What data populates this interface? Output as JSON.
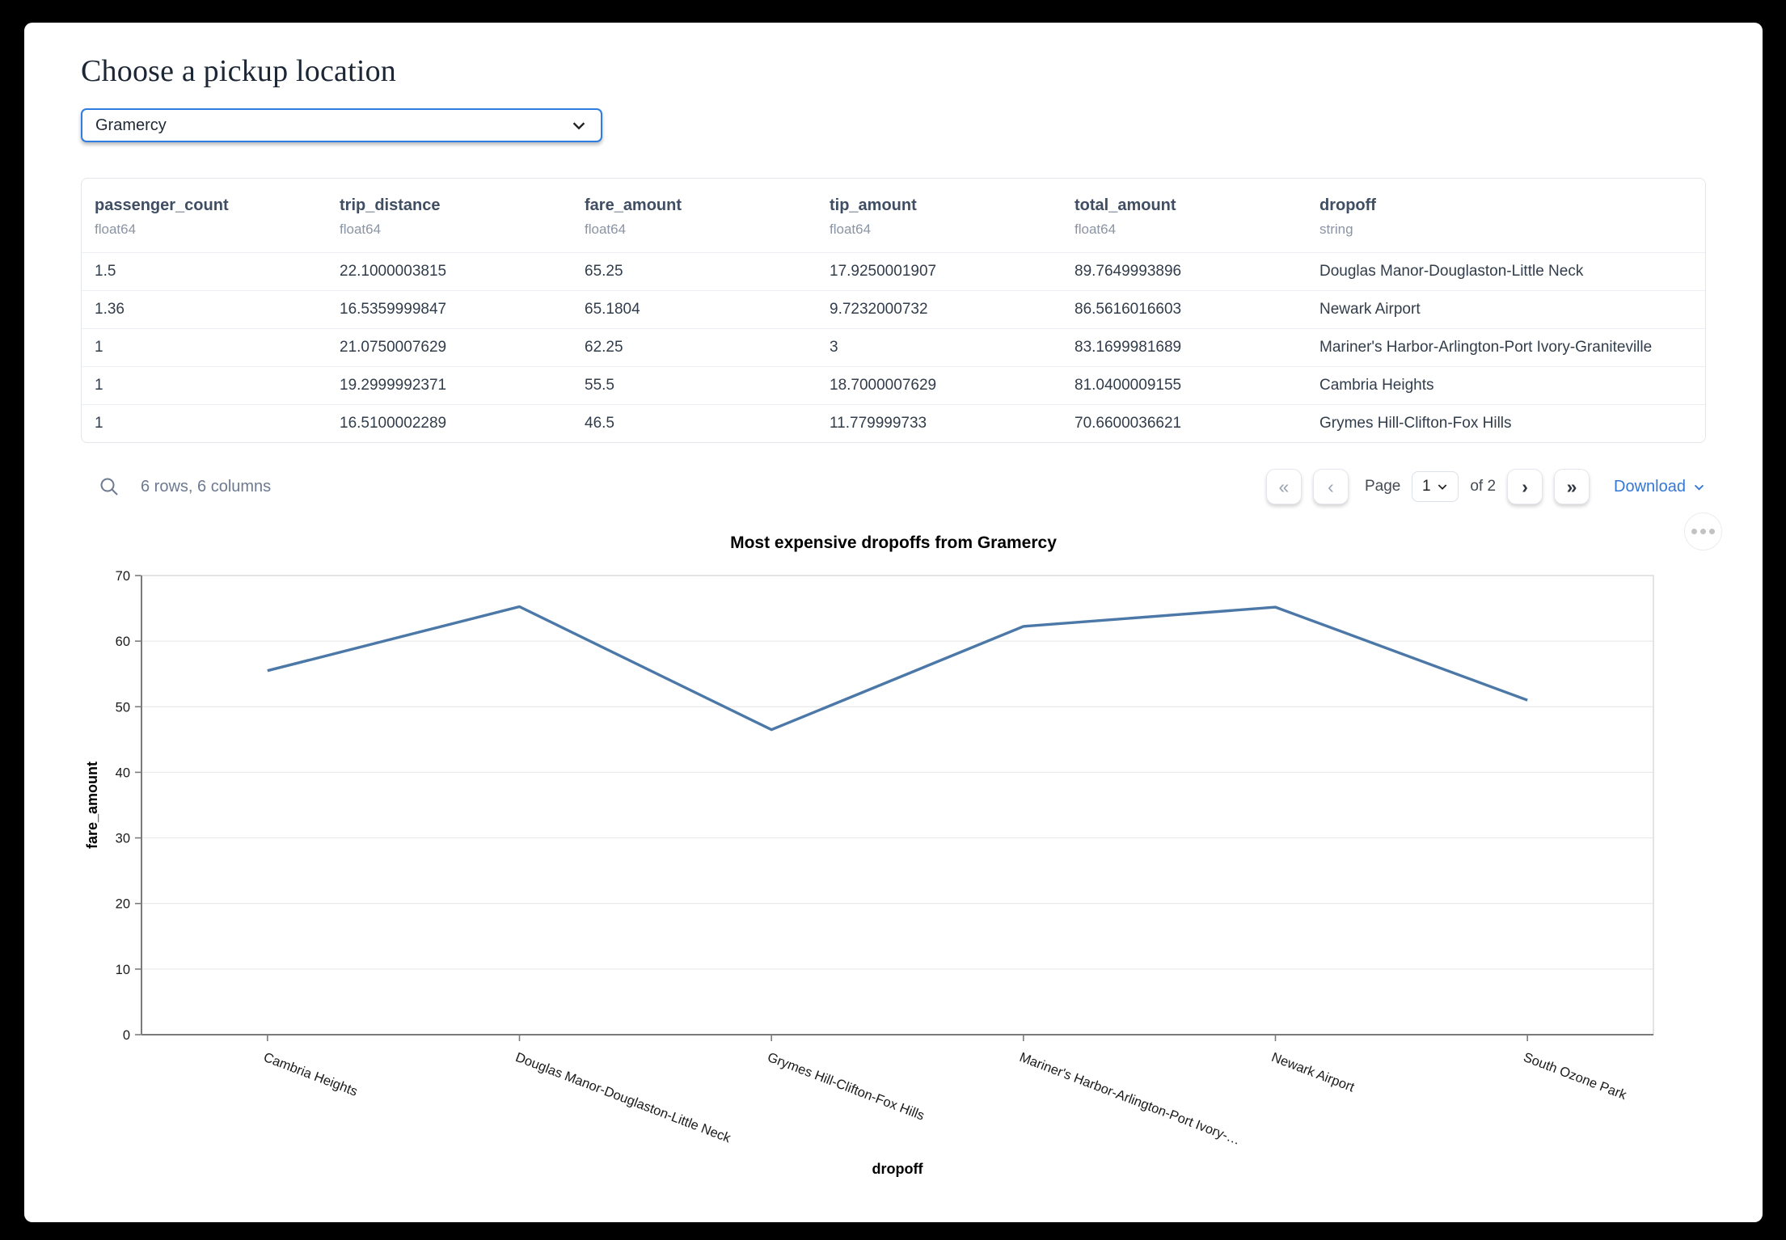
{
  "page": {
    "title": "Choose a pickup location"
  },
  "pickup_select": {
    "value": "Gramercy"
  },
  "table": {
    "columns": [
      {
        "name": "passenger_count",
        "type": "float64"
      },
      {
        "name": "trip_distance",
        "type": "float64"
      },
      {
        "name": "fare_amount",
        "type": "float64"
      },
      {
        "name": "tip_amount",
        "type": "float64"
      },
      {
        "name": "total_amount",
        "type": "float64"
      },
      {
        "name": "dropoff",
        "type": "string"
      }
    ],
    "rows": [
      [
        "1.5",
        "22.1000003815",
        "65.25",
        "17.9250001907",
        "89.7649993896",
        "Douglas Manor-Douglaston-Little Neck"
      ],
      [
        "1.36",
        "16.5359999847",
        "65.1804",
        "9.7232000732",
        "86.5616016603",
        "Newark Airport"
      ],
      [
        "1",
        "21.0750007629",
        "62.25",
        "3",
        "83.1699981689",
        "Mariner's Harbor-Arlington-Port Ivory-Graniteville"
      ],
      [
        "1",
        "19.2999992371",
        "55.5",
        "18.7000007629",
        "81.0400009155",
        "Cambria Heights"
      ],
      [
        "1",
        "16.5100002289",
        "46.5",
        "11.779999733",
        "70.6600036621",
        "Grymes Hill-Clifton-Fox Hills"
      ]
    ],
    "summary": "6 rows, 6 columns",
    "pagination": {
      "first_icon": "«",
      "prev_icon": "‹",
      "page_word": "Page",
      "current_page": "1",
      "of_word": "of",
      "total_pages": "2",
      "next_icon": "›",
      "last_icon": "»",
      "download_label": "Download"
    }
  },
  "chart_data": {
    "type": "line",
    "title": "Most expensive dropoffs from Gramercy",
    "xlabel": "dropoff",
    "ylabel": "fare_amount",
    "categories": [
      "Cambria Heights",
      "Douglas Manor-Douglaston-Little Neck",
      "Grymes Hill-Clifton-Fox Hills",
      "Mariner's Harbor-Arlington-Port Ivory-…",
      "Newark Airport",
      "South Ozone Park"
    ],
    "values": [
      55.5,
      65.25,
      46.5,
      62.25,
      65.1804,
      51
    ],
    "ylim": [
      0,
      70
    ],
    "yticks": [
      0,
      10,
      20,
      30,
      40,
      50,
      60,
      70
    ],
    "grid": true,
    "legend": "none",
    "line_color": "#4c78a8",
    "grid_color": "#e4e4e4",
    "border_color": "#d9d9d9",
    "axis_color": "#7b7b7b",
    "label_color": "#1a1a1a"
  }
}
